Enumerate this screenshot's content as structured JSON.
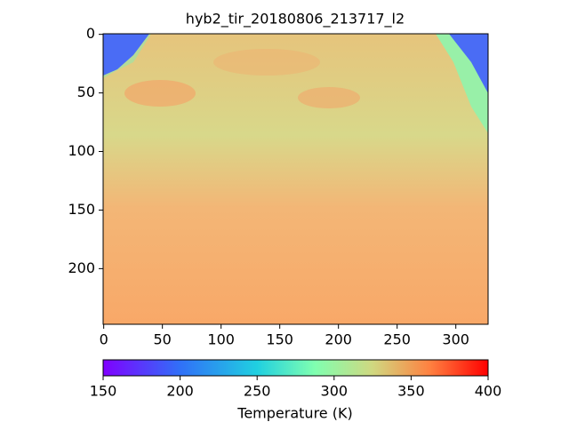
{
  "chart_data": {
    "type": "heatmap",
    "title": "hyb2_tir_20180806_213717_l2",
    "xlim": [
      -0.5,
      327.5
    ],
    "xticks": [
      0,
      50,
      100,
      150,
      200,
      250,
      300
    ],
    "ylim": [
      247.5,
      -0.5
    ],
    "yticks": [
      0,
      50,
      100,
      150,
      200
    ],
    "colorbar": {
      "label": "Temperature (K)",
      "colormap": "rainbow",
      "lim": [
        150,
        400
      ],
      "ticks": [
        150,
        200,
        250,
        300,
        350,
        400
      ]
    }
  }
}
